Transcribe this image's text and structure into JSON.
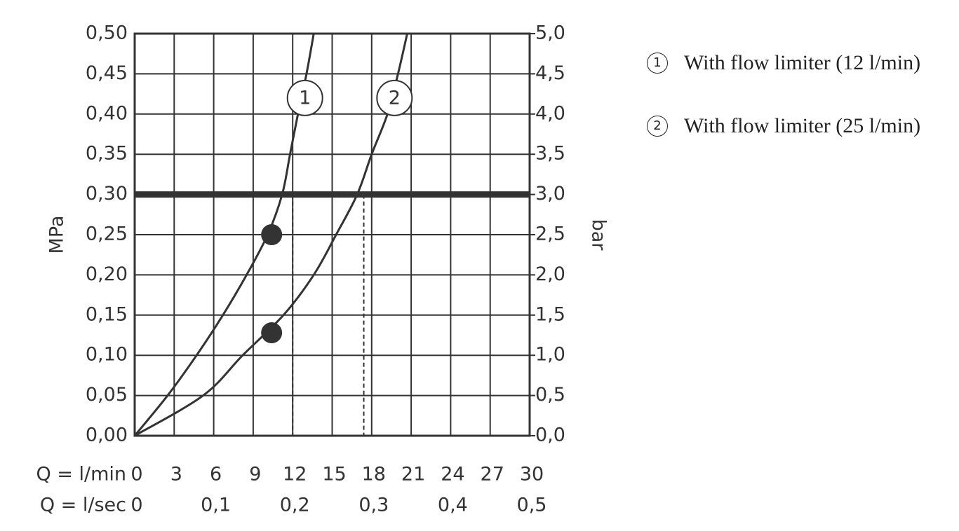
{
  "chart_data": {
    "type": "line",
    "ylabel": "MPa",
    "y2label": "bar",
    "xlabel": "Q = l/min",
    "x2label": "Q = l/sec",
    "xlim": [
      0,
      30
    ],
    "xticks": [
      0,
      3,
      6,
      9,
      12,
      15,
      18,
      21,
      24,
      27,
      30
    ],
    "x2lim": [
      0,
      0.5
    ],
    "x2ticks": [
      0,
      {
        "value": 0.1,
        "label": "0,1"
      },
      {
        "value": 0.2,
        "label": "0,2"
      },
      {
        "value": 0.3,
        "label": "0,3"
      },
      {
        "value": 0.4,
        "label": "0,4"
      },
      {
        "value": 0.5,
        "label": "0,5"
      }
    ],
    "ylim": [
      0,
      0.5
    ],
    "yticks": [
      {
        "value": 0,
        "label": "0,00"
      },
      {
        "value": 0.05,
        "label": "0,05"
      },
      {
        "value": 0.1,
        "label": "0,10"
      },
      {
        "value": 0.15,
        "label": "0,15"
      },
      {
        "value": 0.2,
        "label": "0,20"
      },
      {
        "value": 0.25,
        "label": "0,25"
      },
      {
        "value": 0.3,
        "label": "0,30"
      },
      {
        "value": 0.35,
        "label": "0,35"
      },
      {
        "value": 0.4,
        "label": "0,40"
      },
      {
        "value": 0.45,
        "label": "0,45"
      },
      {
        "value": 0.5,
        "label": "0,50"
      }
    ],
    "y2lim": [
      0,
      5
    ],
    "y2ticks": [
      {
        "value": 0,
        "label": "0,0"
      },
      {
        "value": 0.5,
        "label": "0,5"
      },
      {
        "value": 1,
        "label": "1,0"
      },
      {
        "value": 1.5,
        "label": "1,5"
      },
      {
        "value": 2,
        "label": "2,0"
      },
      {
        "value": 2.5,
        "label": "2,5"
      },
      {
        "value": 3,
        "label": "3,0"
      },
      {
        "value": 3.5,
        "label": "3,5"
      },
      {
        "value": 4,
        "label": "4,0"
      },
      {
        "value": 4.5,
        "label": "4,5"
      },
      {
        "value": 5,
        "label": "5,0"
      }
    ],
    "grid": true,
    "series": [
      {
        "name": "With flow limiter (12 l/min)",
        "label": "1",
        "color": "#333333",
        "x": [
          0,
          2.5,
          4.7,
          6.7,
          8.5,
          10.1,
          11.2,
          11.8,
          12.4,
          13.05,
          13.6
        ],
        "values": [
          0,
          0.05,
          0.1,
          0.15,
          0.2,
          0.25,
          0.3,
          0.35,
          0.4,
          0.45,
          0.5
        ]
      },
      {
        "name": "With flow limiter (25 l/min)",
        "label": "2",
        "color": "#333333",
        "x": [
          0,
          5.2,
          8.2,
          11.3,
          13.6,
          15.3,
          16.9,
          18.0,
          19.2,
          20.0,
          20.7
        ],
        "values": [
          0,
          0.05,
          0.1,
          0.15,
          0.2,
          0.25,
          0.3,
          0.35,
          0.4,
          0.45,
          0.5
        ]
      }
    ],
    "points": {
      "x": [
        10.4,
        10.4
      ],
      "values": [
        0.25,
        0.128
      ]
    },
    "hline": 0.3,
    "vlines": [
      12,
      17.4
    ]
  }
}
